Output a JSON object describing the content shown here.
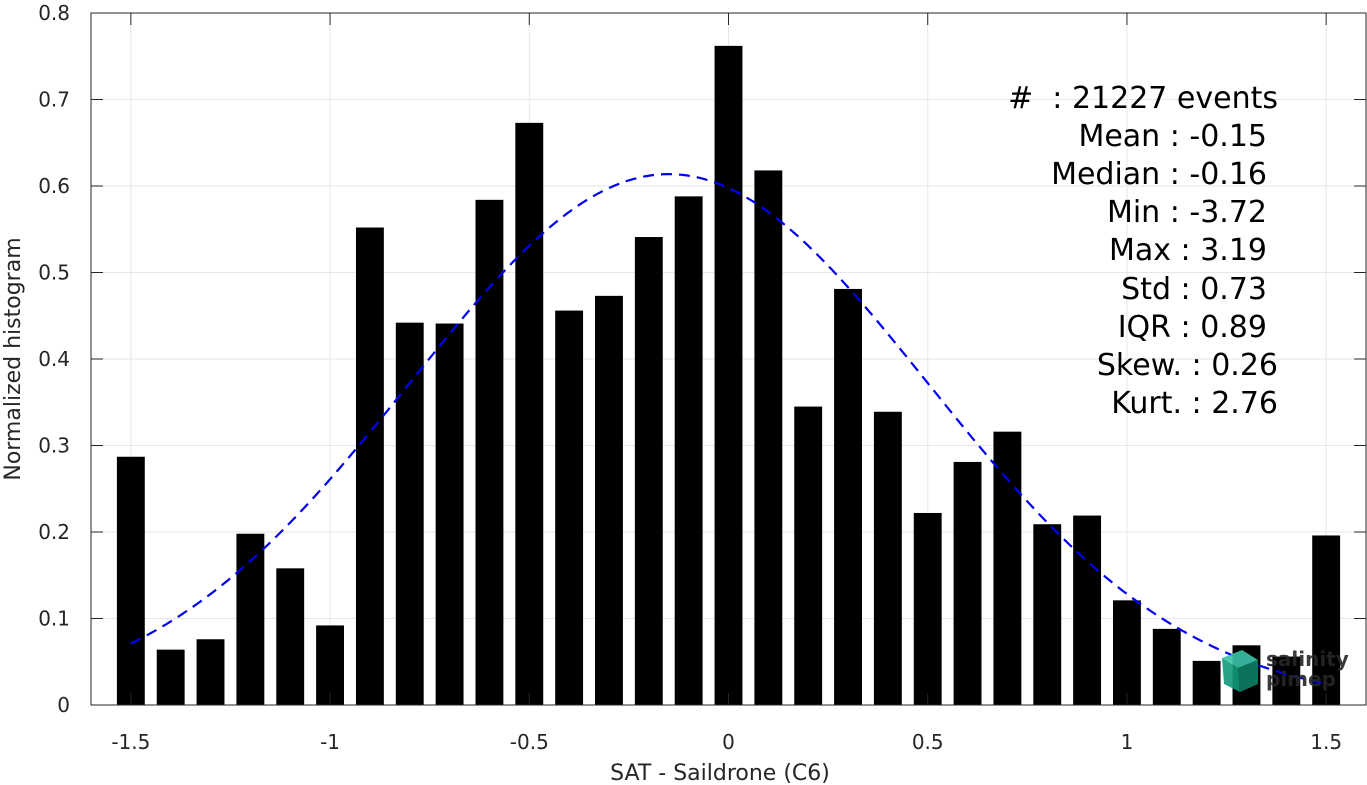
{
  "chart_data": {
    "type": "bar",
    "xlabel": "SAT - Saildrone (C6)",
    "ylabel": "Normalized histogram",
    "xlim": [
      -1.6,
      1.6
    ],
    "ylim": [
      0,
      0.8
    ],
    "xticks": [
      -1.5,
      -1,
      -0.5,
      0,
      0.5,
      1,
      1.5
    ],
    "xtick_labels": [
      "-1.5",
      "-1",
      "-0.5",
      "0",
      "0.5",
      "1",
      "1.5"
    ],
    "yticks": [
      0,
      0.1,
      0.2,
      0.3,
      0.4,
      0.5,
      0.6,
      0.7,
      0.8
    ],
    "ytick_labels": [
      "0",
      "0.1",
      "0.2",
      "0.3",
      "0.4",
      "0.5",
      "0.6",
      "0.7",
      "0.8"
    ],
    "grid": true,
    "bar_color": "#000000",
    "bar_width": 0.07,
    "bins": [
      -1.5,
      -1.4,
      -1.3,
      -1.2,
      -1.1,
      -1.0,
      -0.9,
      -0.8,
      -0.7,
      -0.6,
      -0.5,
      -0.4,
      -0.3,
      -0.2,
      -0.1,
      0.0,
      0.1,
      0.2,
      0.3,
      0.4,
      0.5,
      0.6,
      0.7,
      0.8,
      0.9,
      1.0,
      1.1,
      1.2,
      1.3,
      1.4,
      1.5
    ],
    "values": [
      0.287,
      0.064,
      0.076,
      0.198,
      0.158,
      0.092,
      0.552,
      0.442,
      0.441,
      0.584,
      0.673,
      0.456,
      0.473,
      0.541,
      0.588,
      0.762,
      0.618,
      0.345,
      0.481,
      0.339,
      0.222,
      0.281,
      0.316,
      0.209,
      0.219,
      0.121,
      0.088,
      0.051,
      0.069,
      0.056,
      0.196
    ],
    "fit": {
      "type": "normal",
      "color": "#0000ee",
      "style": "dashed",
      "mean": -0.15,
      "std": 0.65,
      "x_range": [
        -1.5,
        1.5
      ]
    },
    "stats": {
      "count": "#  : 21227 events",
      "mean": "Mean : -0.15",
      "median": "Median : -0.16",
      "min": "Min : -3.72",
      "max": "Max : 3.19",
      "std": "Std : 0.73",
      "iqr": "IQR : 0.89",
      "skew": "Skew. : 0.26",
      "kurt": "Kurt. : 2.76"
    }
  },
  "logo": {
    "line1": "salinity",
    "line2": "pimep",
    "color": "#1aa889"
  }
}
